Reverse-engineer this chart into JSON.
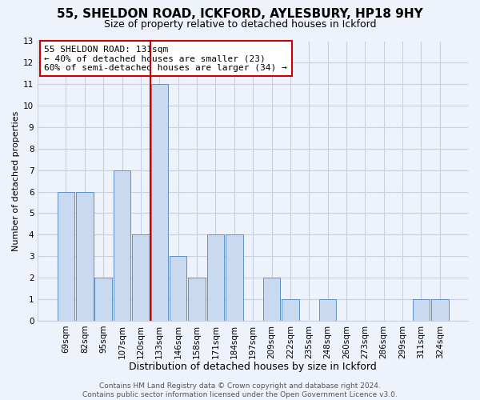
{
  "title": "55, SHELDON ROAD, ICKFORD, AYLESBURY, HP18 9HY",
  "subtitle": "Size of property relative to detached houses in Ickford",
  "xlabel": "Distribution of detached houses by size in Ickford",
  "ylabel": "Number of detached properties",
  "bar_labels": [
    "69sqm",
    "82sqm",
    "95sqm",
    "107sqm",
    "120sqm",
    "133sqm",
    "146sqm",
    "158sqm",
    "171sqm",
    "184sqm",
    "197sqm",
    "209sqm",
    "222sqm",
    "235sqm",
    "248sqm",
    "260sqm",
    "273sqm",
    "286sqm",
    "299sqm",
    "311sqm",
    "324sqm"
  ],
  "bar_values": [
    6,
    6,
    2,
    7,
    4,
    11,
    3,
    2,
    4,
    4,
    0,
    2,
    1,
    0,
    1,
    0,
    0,
    0,
    0,
    1,
    1
  ],
  "bar_color": "#c9d9f0",
  "bar_edge_color": "#6090c8",
  "vline_index": 4.5,
  "vline_color": "#cc0000",
  "annotation_box_text": "55 SHELDON ROAD: 131sqm\n← 40% of detached houses are smaller (23)\n60% of semi-detached houses are larger (34) →",
  "annotation_box_color": "#cc0000",
  "ylim": [
    0,
    13
  ],
  "yticks": [
    0,
    1,
    2,
    3,
    4,
    5,
    6,
    7,
    8,
    9,
    10,
    11,
    12,
    13
  ],
  "grid_color": "#c8cfe0",
  "background_color": "#eef2fa",
  "footer_text": "Contains HM Land Registry data © Crown copyright and database right 2024.\nContains public sector information licensed under the Open Government Licence v3.0.",
  "title_fontsize": 11,
  "subtitle_fontsize": 9,
  "xlabel_fontsize": 9,
  "ylabel_fontsize": 8,
  "tick_fontsize": 7.5,
  "annotation_fontsize": 8,
  "footer_fontsize": 6.5
}
